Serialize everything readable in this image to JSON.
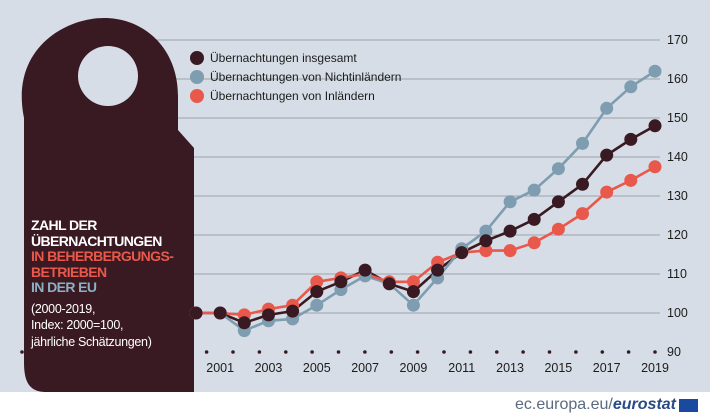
{
  "chart_data": {
    "type": "line",
    "title": "ZAHL DER ÜBERNACHTUNGEN IN BEHERBERGUNGSBETRIEBEN IN DER EU",
    "note_lines": [
      "(2000-2019,",
      "Index: 2000=100,",
      "jährliche Schätzungen)"
    ],
    "x": [
      2000,
      2001,
      2002,
      2003,
      2004,
      2005,
      2006,
      2007,
      2008,
      2009,
      2010,
      2011,
      2012,
      2013,
      2014,
      2015,
      2016,
      2017,
      2018,
      2019
    ],
    "x_tick_labels": [
      "2001",
      "2003",
      "2005",
      "2007",
      "2009",
      "2011",
      "2013",
      "2015",
      "2017",
      "2019"
    ],
    "y_ticks": [
      90,
      100,
      110,
      120,
      130,
      140,
      150,
      160,
      170
    ],
    "ylim": [
      90,
      170
    ],
    "series": [
      {
        "name": "Übernachtungen insgesamt",
        "color": "#3a1a22",
        "values": [
          100,
          100,
          97.5,
          99.5,
          100.5,
          105.5,
          108,
          111,
          107.5,
          105.5,
          111,
          115.5,
          118.5,
          121,
          124,
          128.5,
          133,
          140.5,
          144.5,
          148
        ]
      },
      {
        "name": "Übernachtungen von Nichtinländern",
        "color": "#7e9db0",
        "values": [
          100,
          100,
          95.5,
          98,
          98.5,
          102,
          106,
          109.5,
          107.5,
          102,
          109,
          116.5,
          121,
          128.5,
          131.5,
          137,
          143.5,
          152.5,
          158,
          162
        ]
      },
      {
        "name": "Übernachtungen von Inländern",
        "color": "#e8584b",
        "values": [
          100,
          100,
          99.5,
          101,
          102,
          108,
          109,
          110,
          108,
          108,
          113,
          115.5,
          116,
          116,
          118,
          121.5,
          125.5,
          131,
          134,
          137.5
        ]
      }
    ]
  },
  "title_block": {
    "line1": "ZAHL DER",
    "line2": "ÜBERNACHTUNGEN",
    "line3": "IN BEHERBERGUNGS-",
    "line4": "BETRIEBEN",
    "line5": "IN DER EU",
    "note1": "(2000-2019,",
    "note2": "Index: 2000=100,",
    "note3": "jährliche Schätzungen)"
  },
  "footer": {
    "site": "ec.europa.eu/",
    "brand": "eurostat"
  },
  "colors": {
    "background": "#d6dde6",
    "hanger": "#3a1a22",
    "grid": "#8a8f96"
  }
}
